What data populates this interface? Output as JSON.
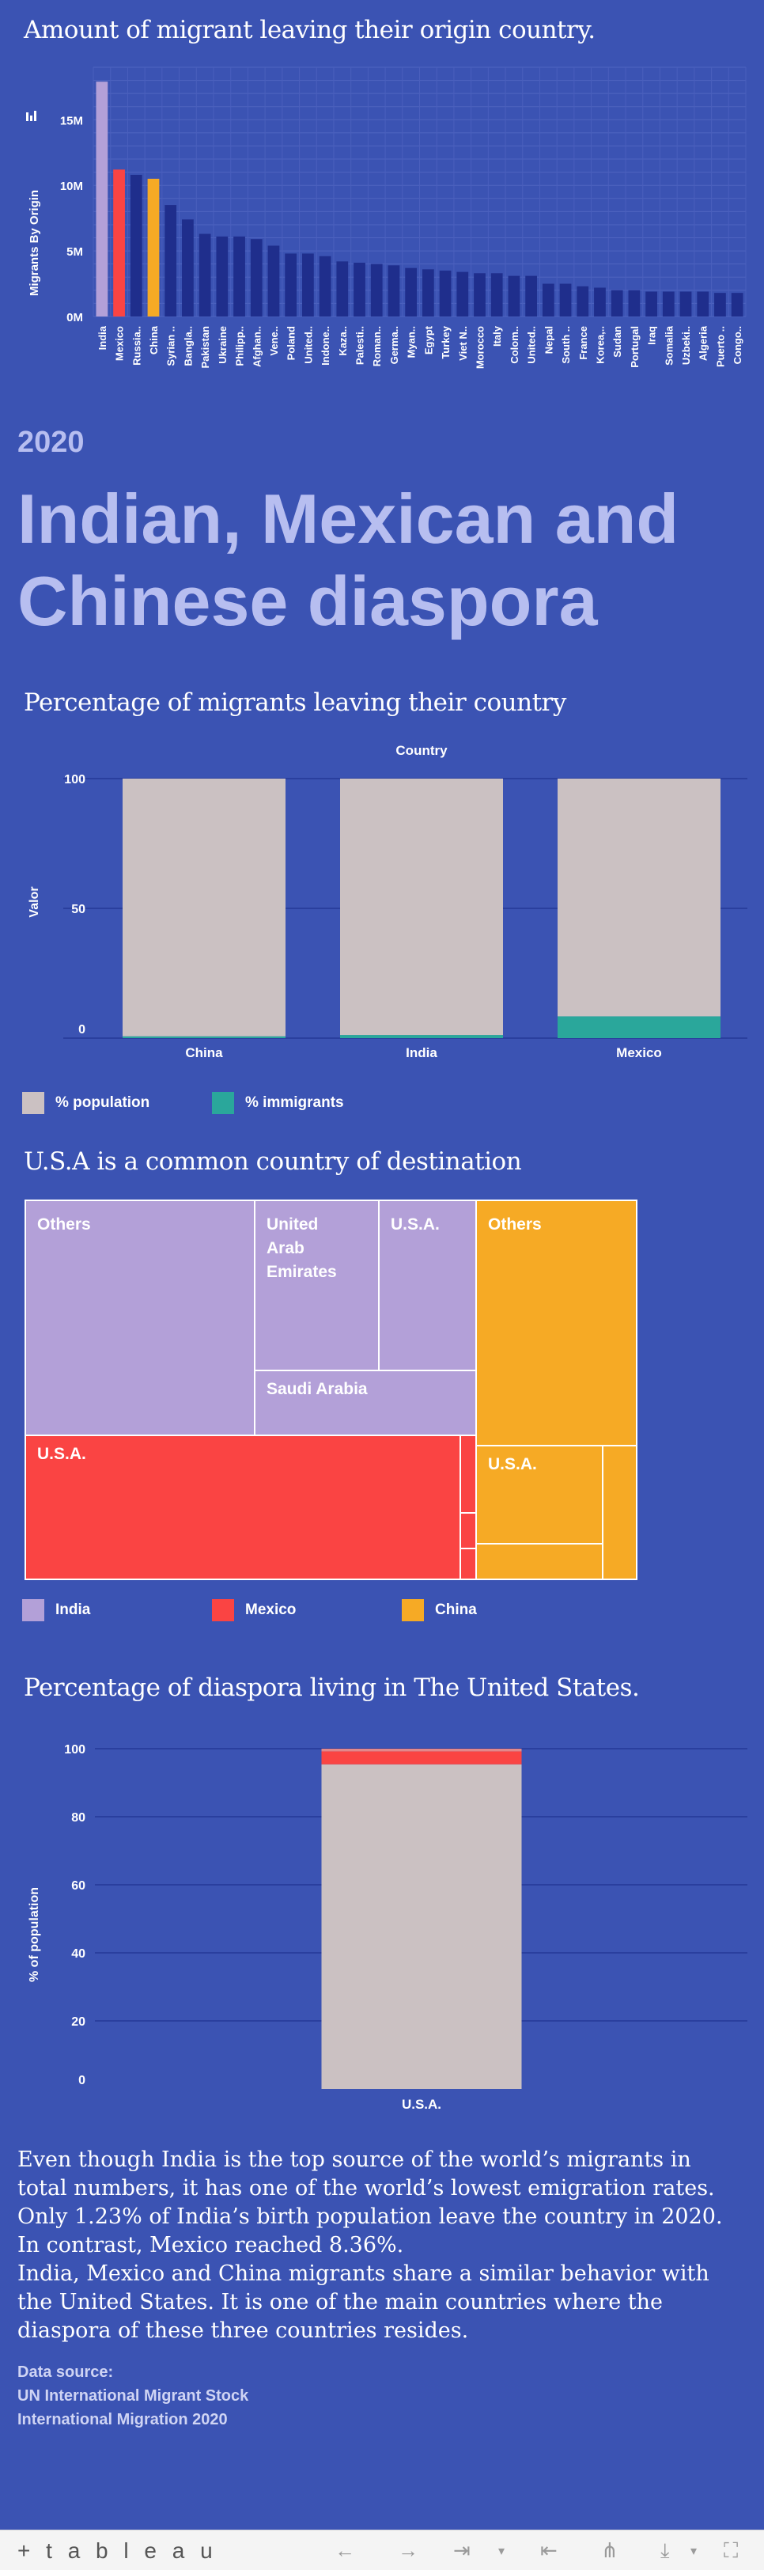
{
  "chart1": {
    "title": "Amount of migrant leaving their origin country.",
    "ylabel": "Migrants By Origin",
    "yticks": [
      "0M",
      "5M",
      "10M",
      "15M"
    ],
    "categories": [
      "India",
      "Mexico",
      "Russia..",
      "China",
      "Syrian ..",
      "Bangla..",
      "Pakistan",
      "Ukraine",
      "Philipp..",
      "Afghan..",
      "Vene..",
      "Poland",
      "United..",
      "Indone..",
      "Kaza..",
      "Palesti..",
      "Roman..",
      "Germa..",
      "Myan..",
      "Egypt",
      "Turkey",
      "Viet N..",
      "Morocco",
      "Italy",
      "Colom..",
      "United..",
      "Nepal",
      "South ..",
      "France",
      "Korea,..",
      "Sudan",
      "Portugal",
      "Iraq",
      "Somalia",
      "Uzbeki..",
      "Algeria",
      "Puerto ..",
      "Congo.."
    ],
    "values": [
      17.9,
      11.2,
      10.8,
      10.5,
      8.5,
      7.4,
      6.3,
      6.1,
      6.1,
      5.9,
      5.4,
      4.8,
      4.8,
      4.6,
      4.2,
      4.1,
      4.0,
      3.9,
      3.7,
      3.6,
      3.5,
      3.4,
      3.3,
      3.3,
      3.1,
      3.1,
      2.5,
      2.5,
      2.3,
      2.2,
      2.0,
      2.0,
      1.9,
      1.9,
      1.9,
      1.9,
      1.8,
      1.8
    ],
    "colors": [
      "#b3a0d8",
      "#fa4443",
      "#1f2e8c",
      "#f6aa25",
      "#1f2e8c"
    ],
    "ylim": [
      0,
      19
    ]
  },
  "hero": {
    "year": "2020",
    "headline": "Indian, Mexican and Chinese diaspora"
  },
  "chart2": {
    "title": "Percentage of migrants leaving their country",
    "header": "Country",
    "ylabel": "Valor",
    "yticks": [
      "0",
      "50",
      "100"
    ],
    "legend": [
      {
        "label": "% population",
        "color": "#cbc1c2"
      },
      {
        "label": "% immigrants",
        "color": "#2aa79b"
      }
    ]
  },
  "chart3": {
    "title": "U.S.A is a common country of destination",
    "labels": {
      "india_others": "Others",
      "india_uae": "United Arab Emirates",
      "india_usa": "U.S.A.",
      "india_saudi": "Saudi Arabia",
      "mexico_usa": "U.S.A.",
      "china_others": "Others",
      "china_usa": "U.S.A."
    },
    "legend": [
      {
        "label": "India",
        "color": "#b3a0d8"
      },
      {
        "label": "Mexico",
        "color": "#fa4443"
      },
      {
        "label": "China",
        "color": "#f6aa25"
      }
    ]
  },
  "chart4": {
    "title": "Percentage of diaspora living in The United States.",
    "ylabel": "% of population",
    "yticks": [
      "0",
      "20",
      "40",
      "60",
      "80",
      "100"
    ],
    "category": "U.S.A."
  },
  "chart_data": [
    {
      "type": "bar",
      "title": "Amount of migrant leaving their origin country.",
      "ylabel": "Migrants By Origin",
      "categories": [
        "India",
        "Mexico",
        "Russia..",
        "China",
        "Syrian ..",
        "Bangla..",
        "Pakistan",
        "Ukraine",
        "Philipp..",
        "Afghan..",
        "Vene..",
        "Poland",
        "United..",
        "Indone..",
        "Kaza..",
        "Palesti..",
        "Roman..",
        "Germa..",
        "Myan..",
        "Egypt",
        "Turkey",
        "Viet N..",
        "Morocco",
        "Italy",
        "Colom..",
        "United..",
        "Nepal",
        "South ..",
        "France",
        "Korea,..",
        "Sudan",
        "Portugal",
        "Iraq",
        "Somalia",
        "Uzbeki..",
        "Algeria",
        "Puerto ..",
        "Congo.."
      ],
      "values": [
        17.9,
        11.2,
        10.8,
        10.5,
        8.5,
        7.4,
        6.3,
        6.1,
        6.1,
        5.9,
        5.4,
        4.8,
        4.8,
        4.6,
        4.2,
        4.1,
        4.0,
        3.9,
        3.7,
        3.6,
        3.5,
        3.4,
        3.3,
        3.3,
        3.1,
        3.1,
        2.5,
        2.5,
        2.3,
        2.2,
        2.0,
        2.0,
        1.9,
        1.9,
        1.9,
        1.9,
        1.8,
        1.8
      ],
      "unit": "M",
      "ylim": [
        0,
        19
      ],
      "grid": true
    },
    {
      "type": "bar",
      "title": "Percentage of migrants leaving their country",
      "ylabel": "Valor",
      "categories": [
        "China",
        "India",
        "Mexico"
      ],
      "series": [
        {
          "name": "% population",
          "values": [
            99.3,
            98.8,
            91.6
          ]
        },
        {
          "name": "% immigrants",
          "values": [
            0.7,
            1.2,
            8.4
          ]
        }
      ],
      "stacked": true,
      "ylim": [
        0,
        100
      ],
      "legend": "bottom"
    },
    {
      "type": "treemap",
      "title": "U.S.A is a common country of destination",
      "groups": [
        {
          "name": "India",
          "items": [
            "Others",
            "United Arab Emirates",
            "U.S.A.",
            "Saudi Arabia"
          ]
        },
        {
          "name": "Mexico",
          "items": [
            "U.S.A."
          ]
        },
        {
          "name": "China",
          "items": [
            "Others",
            "U.S.A."
          ]
        }
      ],
      "legend": "bottom"
    },
    {
      "type": "bar",
      "title": "Percentage of diaspora living in The United States.",
      "ylabel": "% of population",
      "categories": [
        "U.S.A."
      ],
      "series": [
        {
          "values": [
            95.4
          ]
        },
        {
          "values": [
            3.8
          ]
        },
        {
          "values": [
            0.8
          ]
        }
      ],
      "stacked": true,
      "ylim": [
        0,
        100
      ]
    }
  ],
  "text": {
    "p1": "Even though India is the top source of the world’s migrants in total numbers, it has one of the world’s lowest emigration rates. Only 1.23% of India’s birth population leave the country in 2020. In contrast, Mexico reached 8.36%.",
    "p2": "India, Mexico and China migrants share a similar behavior with the United States. It is one of the main countries where the diaspora of these three countries resides.",
    "source_label": "Data source:",
    "source_1": "UN International Migrant Stock",
    "source_2": "International Migration 2020"
  },
  "footer": {
    "logo": "+ t a b l e a u",
    "icons": [
      "undo-icon",
      "redo-icon",
      "revert-icon",
      "replay-icon",
      "share-icon",
      "download-icon",
      "fullscreen-icon"
    ]
  }
}
